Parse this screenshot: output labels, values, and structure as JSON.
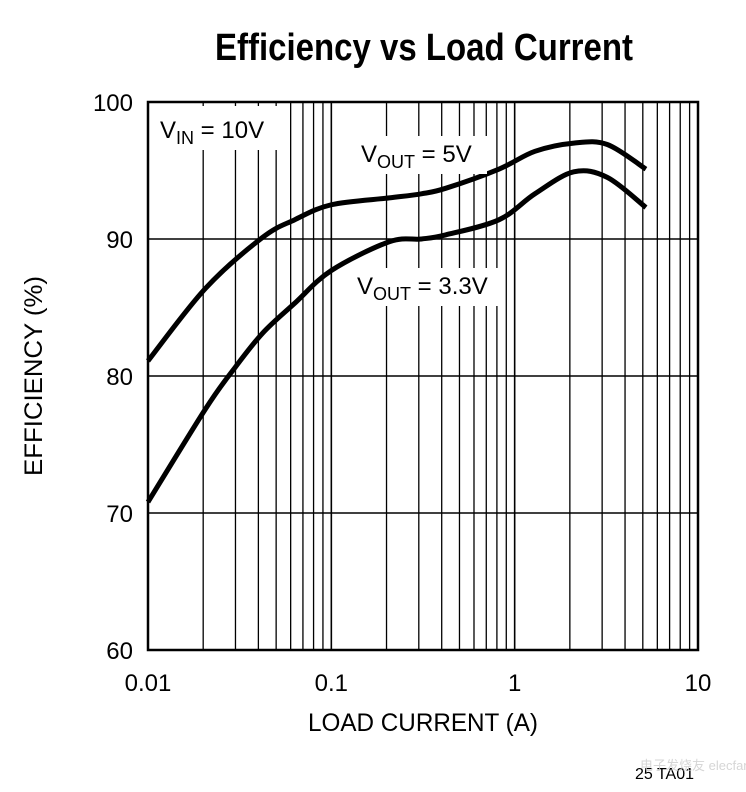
{
  "chart_data": {
    "type": "line",
    "title": "Efficiency vs Load Current",
    "xlabel": "LOAD CURRENT (A)",
    "ylabel": "EFFICIENCY (%)",
    "x_scale": "log",
    "xlim": [
      0.01,
      10
    ],
    "ylim": [
      60,
      100
    ],
    "grid": true,
    "x_ticks": [
      0.01,
      0.1,
      1,
      10
    ],
    "x_tick_labels": [
      "0.01",
      "0.1",
      "1",
      "10"
    ],
    "y_ticks": [
      60,
      70,
      80,
      90,
      100
    ],
    "y_tick_labels": [
      "60",
      "70",
      "80",
      "90",
      "100"
    ],
    "annotations": {
      "vin": {
        "main": "V",
        "sub": "IN",
        "rest": " = 10V"
      },
      "vout5": {
        "main": "V",
        "sub": "OUT",
        "rest": " = 5V"
      },
      "vout33": {
        "main": "V",
        "sub": "OUT",
        "rest": " = 3.3V"
      }
    },
    "figure_code": "25 TA01",
    "watermark": "电子发烧友 elecfans.com",
    "series": [
      {
        "name": "VOUT = 5V",
        "x": [
          0.01,
          0.0206,
          0.042,
          0.063,
          0.1,
          0.207,
          0.31,
          0.42,
          0.82,
          1.29,
          2.1,
          3.2,
          5.2
        ],
        "y": [
          81.1,
          86.4,
          90.1,
          91.4,
          92.5,
          93.0,
          93.3,
          93.7,
          95.1,
          96.4,
          97.0,
          96.9,
          95.1
        ]
      },
      {
        "name": "VOUT = 3.3V",
        "x": [
          0.01,
          0.0206,
          0.029,
          0.042,
          0.063,
          0.1,
          0.207,
          0.31,
          0.42,
          0.82,
          1.29,
          2.1,
          3.2,
          5.2
        ],
        "y": [
          70.8,
          77.6,
          80.4,
          83.1,
          85.3,
          87.7,
          89.8,
          90.0,
          90.3,
          91.4,
          93.3,
          94.9,
          94.5,
          92.3
        ]
      }
    ]
  }
}
